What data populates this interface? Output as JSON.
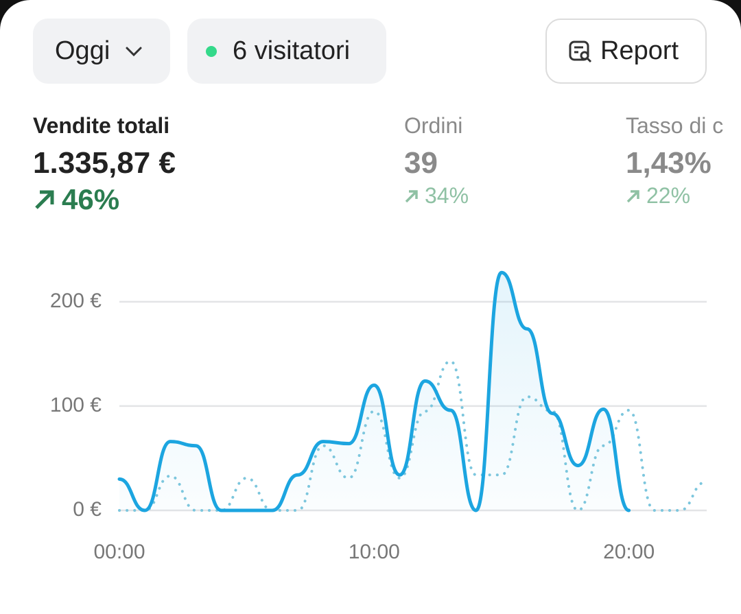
{
  "toolbar": {
    "period": "Oggi",
    "visitors": "6 visitatori",
    "report": "Report"
  },
  "metrics": [
    {
      "label": "Vendite totali",
      "value": "1.335,87 €",
      "change": "46%"
    },
    {
      "label": "Ordini",
      "value": "39",
      "change": "34%"
    },
    {
      "label": "Tasso di c",
      "value": "1,43%",
      "change": "22%"
    }
  ],
  "chart_data": {
    "type": "line",
    "x": [
      0,
      1,
      2,
      3,
      4,
      5,
      6,
      7,
      8,
      9,
      10,
      11,
      12,
      13,
      14,
      15,
      16,
      17,
      18,
      19,
      20,
      21,
      22,
      23
    ],
    "series": [
      {
        "color": "#1ca5e0",
        "style": "solid",
        "fill": true,
        "values": [
          30,
          0,
          66,
          62,
          0,
          0,
          0,
          34,
          66,
          64,
          120,
          34,
          124,
          96,
          0,
          228,
          174,
          93,
          43,
          97,
          0,
          null,
          null,
          null
        ]
      },
      {
        "color": "#7cc6dd",
        "style": "dotted",
        "fill": false,
        "values": [
          0,
          0,
          33,
          0,
          0,
          31,
          0,
          0,
          62,
          31,
          95,
          31,
          95,
          143,
          34,
          34,
          109,
          95,
          0,
          62,
          96,
          0,
          0,
          27
        ]
      }
    ],
    "xlim": [
      0,
      23
    ],
    "xticks": [
      {
        "value": 0,
        "label": "00:00"
      },
      {
        "value": 10,
        "label": "10:00"
      },
      {
        "value": 20,
        "label": "20:00"
      }
    ],
    "ylim": [
      0,
      240
    ],
    "yticks": [
      {
        "value": 0,
        "label": "0 €"
      },
      {
        "value": 100,
        "label": "100 €"
      },
      {
        "value": 200,
        "label": "200 €"
      }
    ],
    "grid": true
  }
}
